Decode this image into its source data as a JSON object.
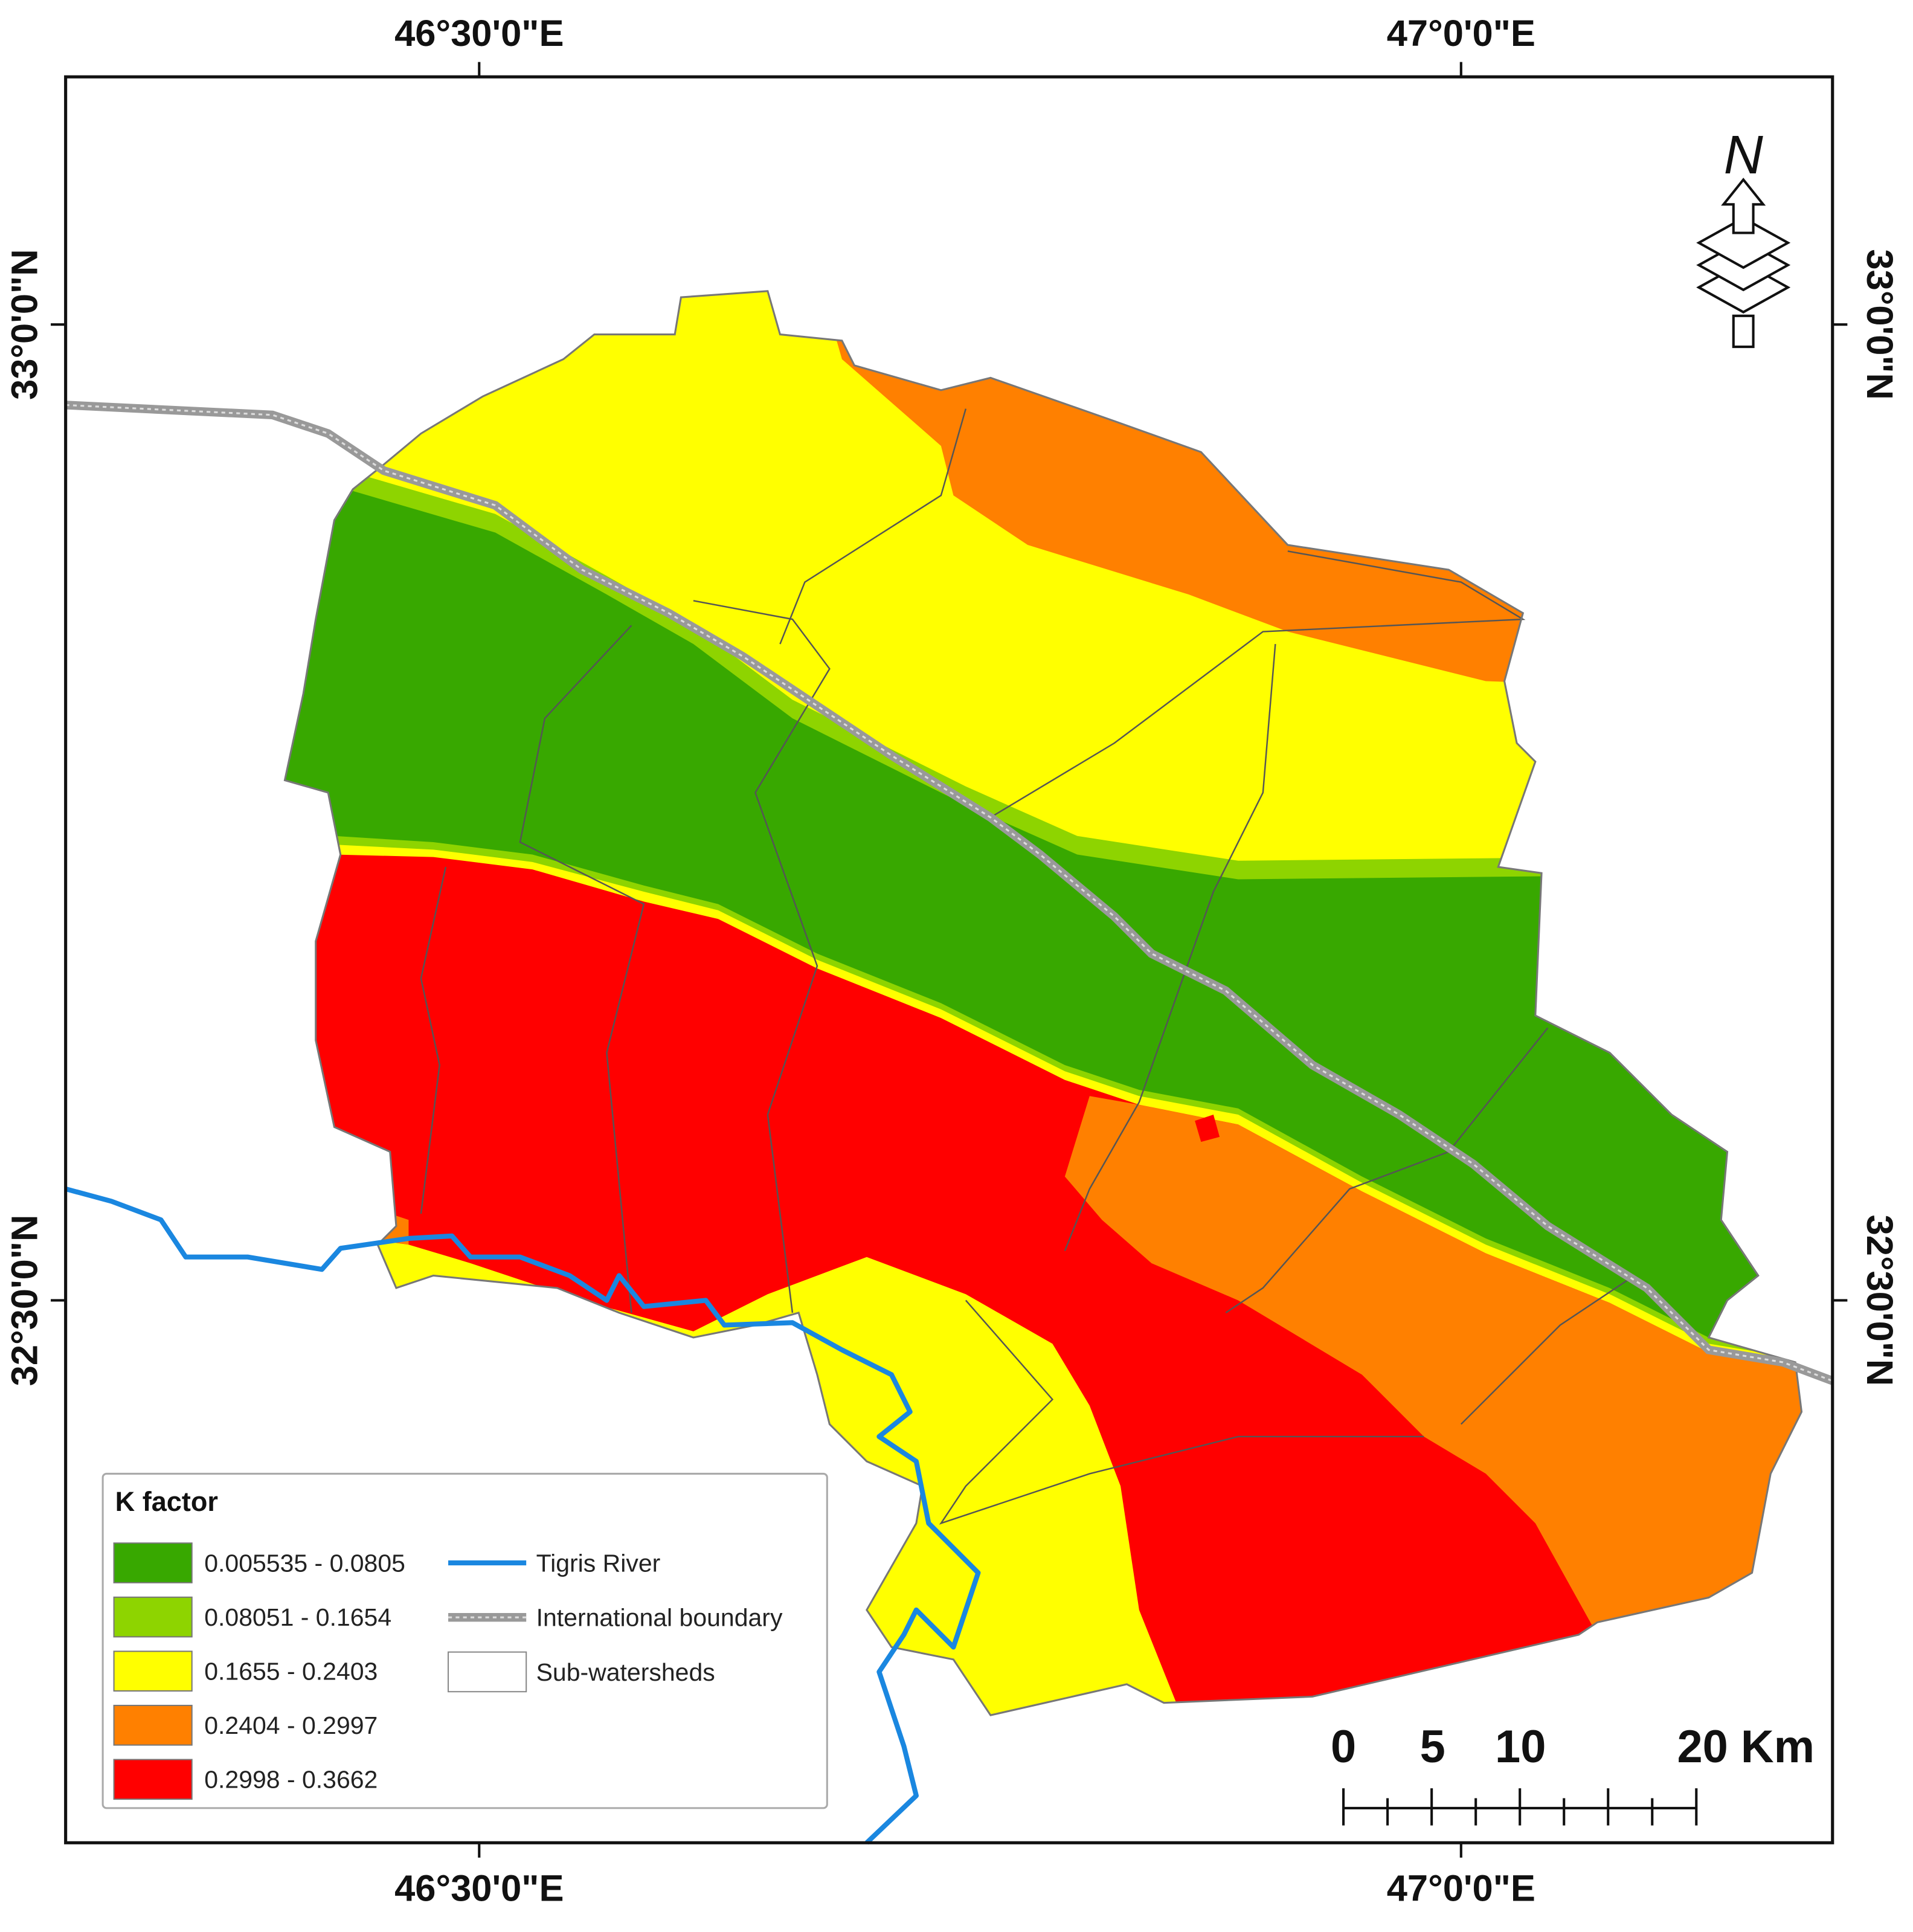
{
  "graticule": {
    "top": [
      "46°30'0\"E",
      "47°0'0\"E"
    ],
    "bottom": [
      "46°30'0\"E",
      "47°0'0\"E"
    ],
    "left": [
      "33°0'0\"N",
      "32°30'0\"N"
    ],
    "right": [
      "33°0'0\"N",
      "32°30'0\"N"
    ]
  },
  "legend": {
    "title": "K factor",
    "classes": [
      {
        "label": "0.005535 - 0.0805",
        "color": "#38a800"
      },
      {
        "label": "0.08051 - 0.1654",
        "color": "#8ed400"
      },
      {
        "label": "0.1655 - 0.2403",
        "color": "#ffff00"
      },
      {
        "label": "0.2404 - 0.2997",
        "color": "#ff8000"
      },
      {
        "label": "0.2998 - 0.3662",
        "color": "#ff0000"
      }
    ],
    "lines": [
      {
        "label": "Tigris River"
      },
      {
        "label": "International boundary"
      },
      {
        "label": "Sub-watersheds"
      }
    ]
  },
  "scale_bar": {
    "labels": [
      "0",
      "5",
      "10",
      "20 Km"
    ]
  },
  "north_arrow": {
    "label": "N"
  }
}
